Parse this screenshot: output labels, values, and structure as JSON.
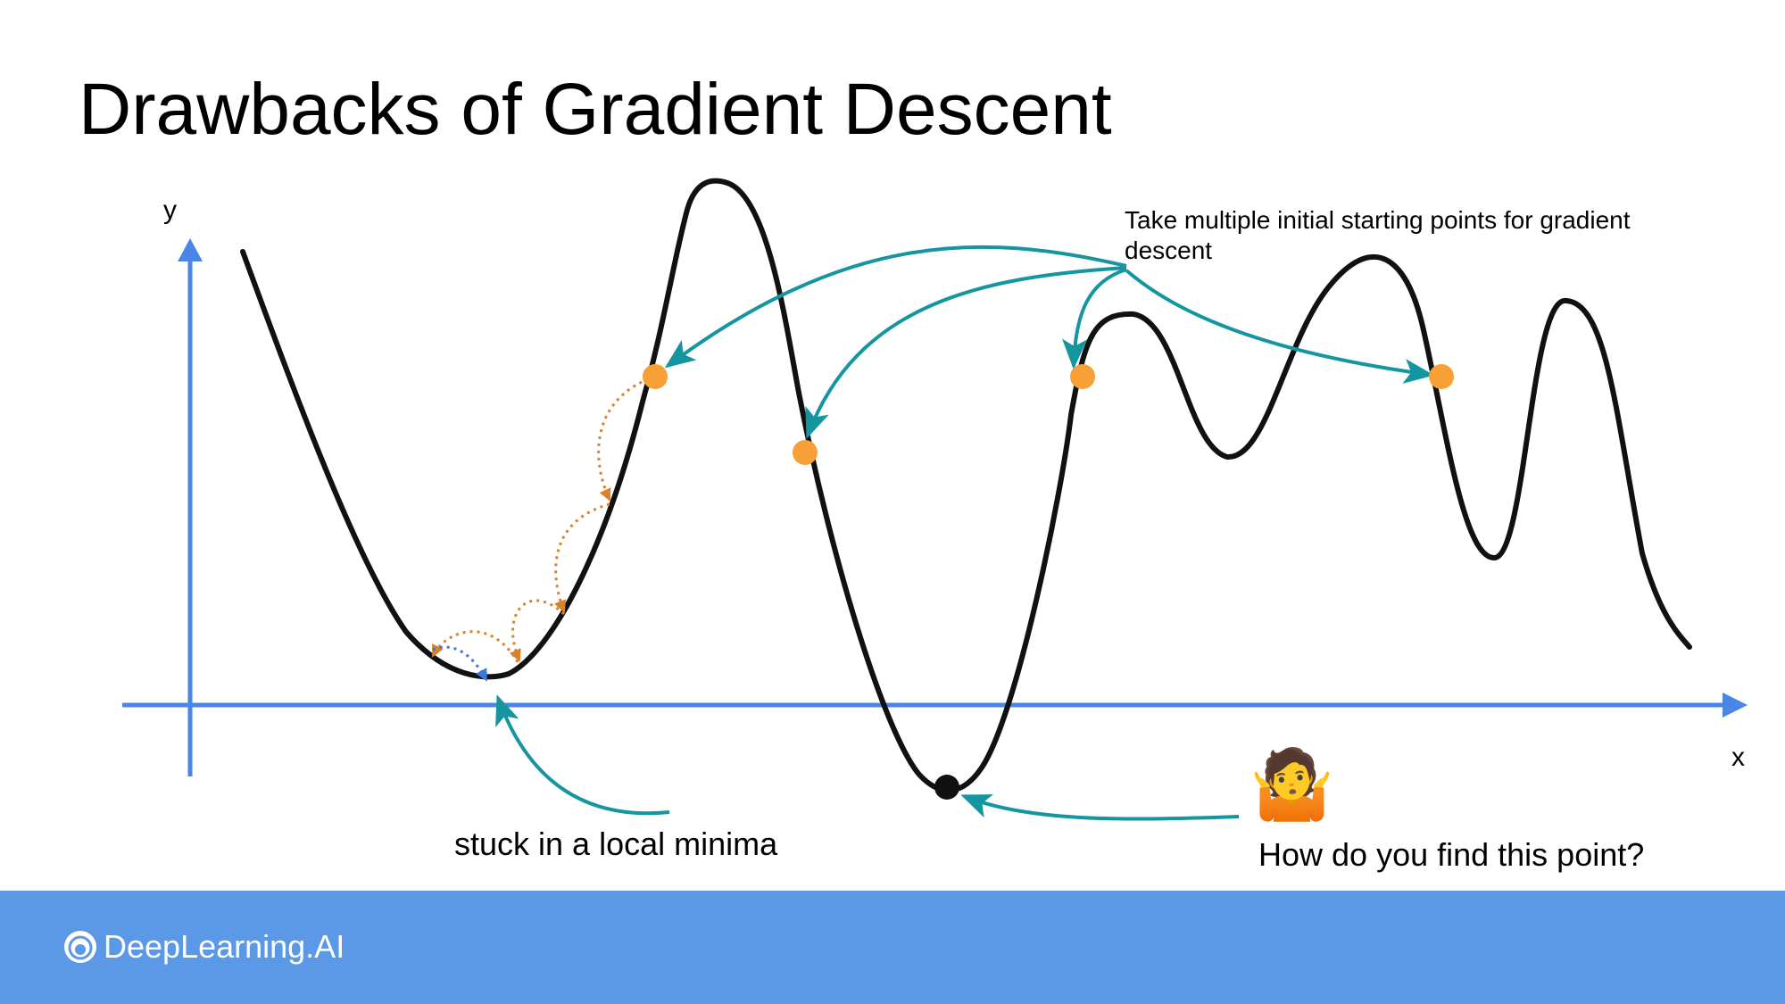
{
  "slide": {
    "title": "Drawbacks of Gradient Descent"
  },
  "diagram": {
    "axis_y_label": "y",
    "axis_x_label": "x",
    "annotation_starting_points_line1": "Take multiple initial starting points for gradient",
    "annotation_starting_points_line2": "descent",
    "annotation_local_minima": "stuck in a local minima",
    "annotation_find_point": "How do you find this point?",
    "shrug_emoji": "🤷",
    "colors": {
      "axis": "#4a86e8",
      "curve": "#111111",
      "start_point": "#f6a035",
      "global_min_point": "#111111",
      "teal_arrow": "#14959f",
      "step_arrow": "#d9822b",
      "blue_step_arrow": "#3c78d8"
    }
  },
  "footer": {
    "logo_text": "DeepLearning.AI",
    "logo_icon": "deeplearning-ai-logo-icon",
    "background": "#5b98e6"
  }
}
